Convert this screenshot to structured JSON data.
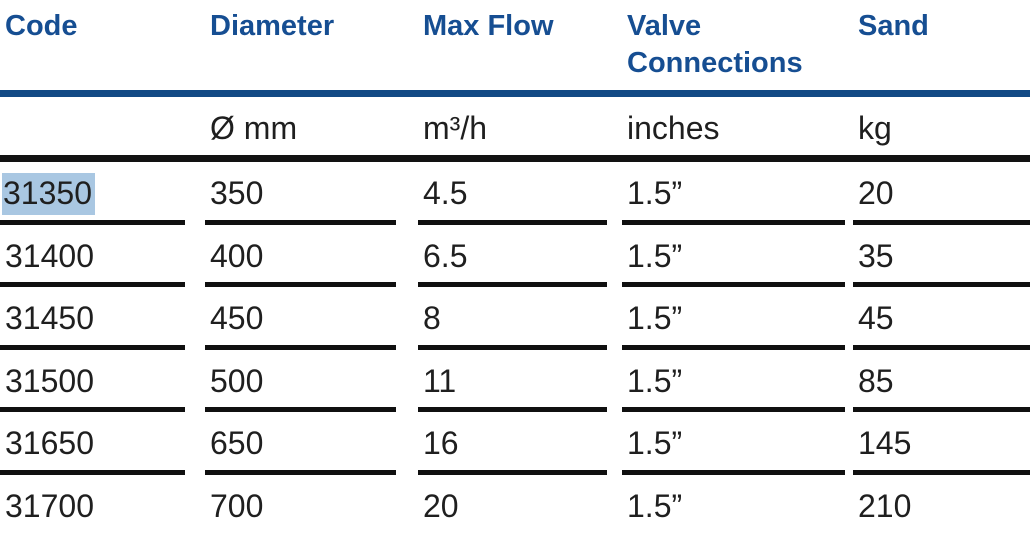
{
  "table": {
    "columns": [
      {
        "label": "Code",
        "unit": ""
      },
      {
        "label": "Diameter",
        "unit": "Ø mm"
      },
      {
        "label": "Max Flow",
        "unit": "m³/h"
      },
      {
        "label": "Valve Connections",
        "unit": "inches"
      },
      {
        "label": "Sand",
        "unit": "kg"
      }
    ],
    "rows": [
      [
        "31350",
        "350",
        "4.5",
        "1.5”",
        "20"
      ],
      [
        "31400",
        "400",
        "6.5",
        "1.5”",
        "35"
      ],
      [
        "31450",
        "450",
        "8",
        "1.5”",
        "45"
      ],
      [
        "31500",
        "500",
        "11",
        "1.5”",
        "85"
      ],
      [
        "31650",
        "650",
        "16",
        "1.5”",
        "145"
      ],
      [
        "31700",
        "700",
        "20",
        "1.5”",
        "210"
      ]
    ],
    "selection": {
      "value": "31350",
      "row_index": 0,
      "col_index": 0,
      "highlight_color": "#a9c7e2"
    }
  },
  "colors": {
    "header_text": "#164e92",
    "header_rule": "#124a85",
    "body_text": "#1f1f1f",
    "row_rule": "#101010",
    "background": "#ffffff"
  }
}
